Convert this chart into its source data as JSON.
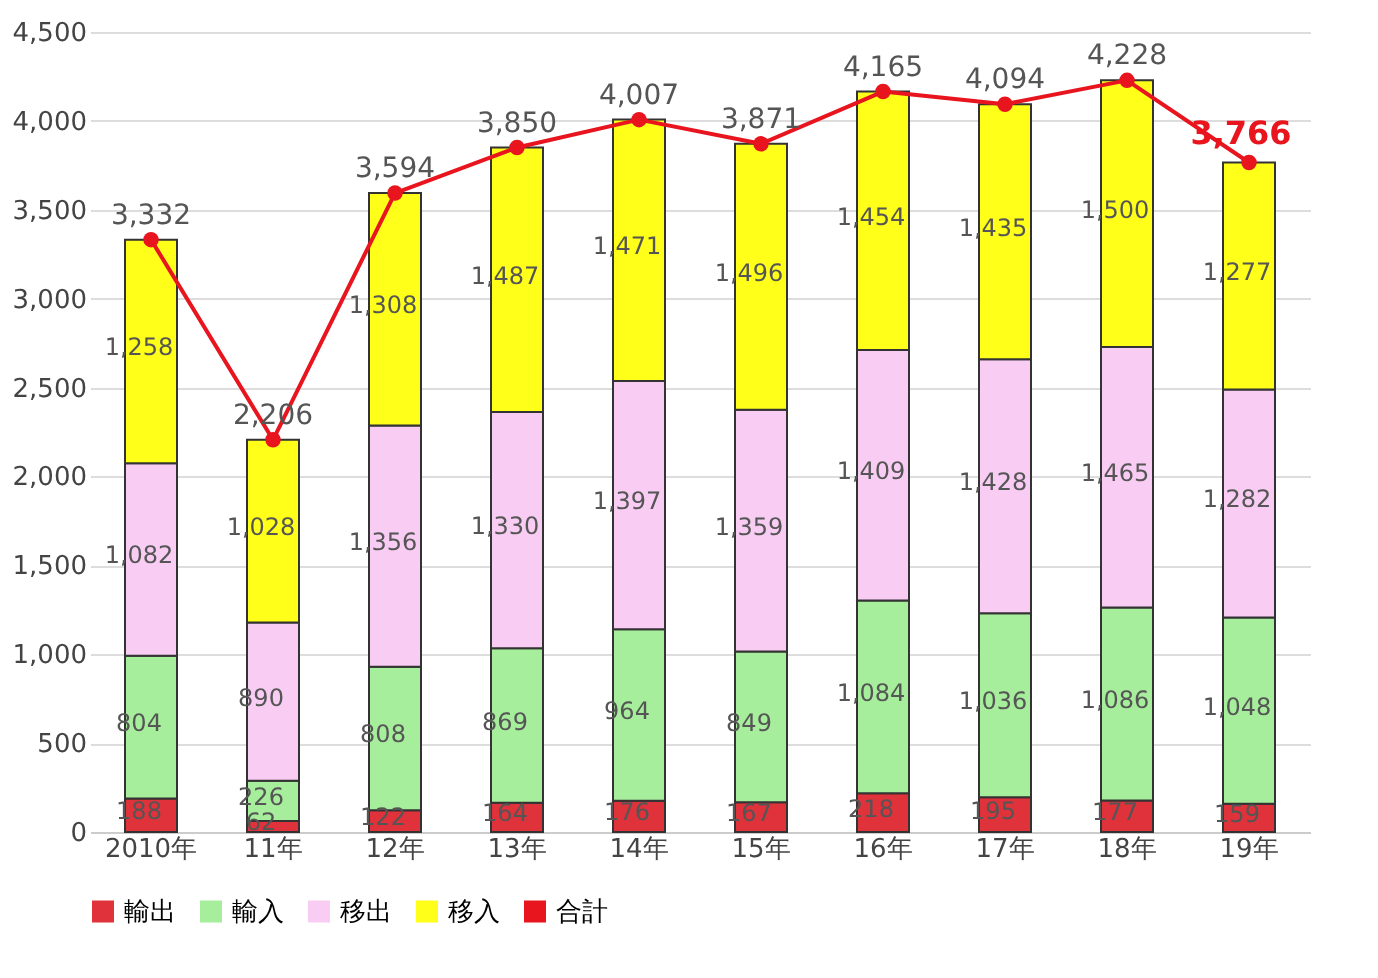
{
  "chart_data": {
    "type": "bar",
    "stacked": true,
    "categories": [
      "2010年",
      "11年",
      "12年",
      "13年",
      "14年",
      "15年",
      "16年",
      "17年",
      "18年",
      "19年"
    ],
    "series": [
      {
        "name": "輸出",
        "color": "#e0323a",
        "values": [
          188,
          62,
          122,
          164,
          176,
          167,
          218,
          195,
          177,
          159
        ],
        "value_labels": [
          "188",
          "62",
          "122",
          "164",
          "176",
          "167",
          "218",
          "195",
          "177",
          "159"
        ]
      },
      {
        "name": "輸入",
        "color": "#a6ee9c",
        "values": [
          804,
          226,
          808,
          869,
          964,
          849,
          1084,
          1036,
          1086,
          1048
        ],
        "value_labels": [
          "804",
          "226",
          "808",
          "869",
          "964",
          "849",
          "1,084",
          "1,036",
          "1,086",
          "1,048"
        ]
      },
      {
        "name": "移出",
        "color": "#f9cdf3",
        "values": [
          1082,
          890,
          1356,
          1330,
          1397,
          1359,
          1409,
          1428,
          1465,
          1282
        ],
        "value_labels": [
          "1,082",
          "890",
          "1,356",
          "1,330",
          "1,397",
          "1,359",
          "1,409",
          "1,428",
          "1,465",
          "1,282"
        ]
      },
      {
        "name": "移入",
        "color": "#ffff1a",
        "values": [
          1258,
          1028,
          1308,
          1487,
          1471,
          1496,
          1454,
          1435,
          1500,
          1277
        ],
        "value_labels": [
          "1,258",
          "1,028",
          "1,308",
          "1,487",
          "1,471",
          "1,496",
          "1,454",
          "1,435",
          "1,500",
          "1,277"
        ]
      },
      {
        "name": "合計",
        "type": "line",
        "color": "#e8141e",
        "marker": "circle",
        "values": [
          3332,
          2206,
          3594,
          3850,
          4007,
          3871,
          4165,
          4094,
          4228,
          3766
        ],
        "value_labels": [
          "3,332",
          "2,206",
          "3,594",
          "3,850",
          "4,007",
          "3,871",
          "4,165",
          "4,094",
          "4,228",
          "3,766"
        ]
      }
    ],
    "ylim": [
      0,
      4500
    ],
    "yticks": [
      0,
      {
        "value": 500,
        "label": "500"
      },
      {
        "value": 1000,
        "label": "1,000"
      },
      {
        "value": 1500,
        "label": "1,500"
      },
      {
        "value": 2000,
        "label": "2,000"
      },
      {
        "value": 2500,
        "label": "2,500"
      },
      {
        "value": 3000,
        "label": "3,000"
      },
      {
        "value": 3500,
        "label": "3,500"
      },
      {
        "value": 4000,
        "label": "4,000"
      },
      {
        "value": 4500,
        "label": "4,500"
      }
    ],
    "grid": "y",
    "legend": "bottom"
  }
}
